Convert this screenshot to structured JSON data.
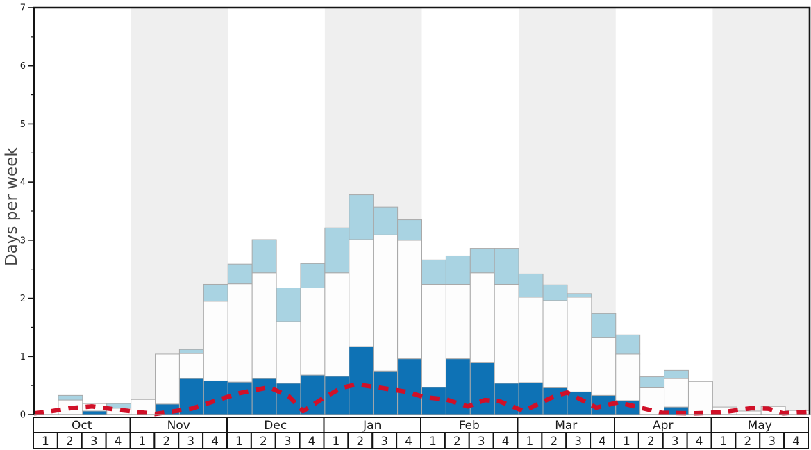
{
  "chart_data": {
    "type": "bar",
    "ylabel": "Days per week",
    "ylim": [
      0,
      7
    ],
    "y_major_ticks": [
      "0",
      "1",
      "2",
      "3",
      "4",
      "5",
      "6",
      "7"
    ],
    "y_minor_step": 0.5,
    "grid": "off",
    "legend": "none",
    "months": [
      "Oct",
      "Nov",
      "Dec",
      "Jan",
      "Feb",
      "Mar",
      "Apr",
      "May"
    ],
    "week_labels": [
      "1",
      "2",
      "3",
      "4"
    ],
    "shaded_month_indices": [
      1,
      3,
      5,
      7
    ],
    "stacking_order": [
      "dark_blue",
      "white",
      "light_blue"
    ],
    "bar_segments_cumulative_tops": {
      "dark_blue": [
        0,
        0,
        0.06,
        0,
        0,
        0.18,
        0.62,
        0.58,
        0.56,
        0.62,
        0.54,
        0.68,
        0.66,
        1.17,
        0.75,
        0.96,
        0.47,
        0.96,
        0.9,
        0.54,
        0.55,
        0.46,
        0.39,
        0.33,
        0.24,
        0,
        0.13,
        0,
        0,
        0,
        0,
        0
      ],
      "white": [
        0,
        0.25,
        0.19,
        0.11,
        0.26,
        1.04,
        1.05,
        1.95,
        2.25,
        2.44,
        1.6,
        2.18,
        2.44,
        3.01,
        3.09,
        3.0,
        2.24,
        2.24,
        2.44,
        2.24,
        2.02,
        1.96,
        2.02,
        1.33,
        1.04,
        0.46,
        0.62,
        0.57,
        0.13,
        0.06,
        0.14,
        0.07
      ],
      "light_blue": [
        0,
        0.33,
        0.19,
        0.19,
        0.26,
        1.04,
        1.12,
        2.24,
        2.59,
        3.01,
        2.18,
        2.6,
        3.21,
        3.78,
        3.57,
        3.35,
        2.66,
        2.73,
        2.86,
        2.86,
        2.42,
        2.23,
        2.08,
        1.74,
        1.37,
        0.65,
        0.76,
        0.57,
        0.13,
        0.06,
        0.14,
        0.07
      ]
    },
    "red_line": {
      "style": "dashed",
      "points_week_value": [
        [
          0.0,
          0.02
        ],
        [
          0.6,
          0.05
        ],
        [
          1.5,
          0.11
        ],
        [
          2.4,
          0.14
        ],
        [
          3.5,
          0.08
        ],
        [
          5.0,
          0.01
        ],
        [
          6.5,
          0.1
        ],
        [
          7.5,
          0.24
        ],
        [
          8.5,
          0.37
        ],
        [
          9.7,
          0.47
        ],
        [
          10.5,
          0.32
        ],
        [
          11.1,
          0.06
        ],
        [
          12.0,
          0.3
        ],
        [
          12.7,
          0.46
        ],
        [
          13.3,
          0.52
        ],
        [
          14.3,
          0.46
        ],
        [
          15.4,
          0.39
        ],
        [
          16.1,
          0.3
        ],
        [
          17.0,
          0.26
        ],
        [
          17.9,
          0.14
        ],
        [
          18.6,
          0.25
        ],
        [
          19.2,
          0.23
        ],
        [
          20.2,
          0.06
        ],
        [
          21.5,
          0.32
        ],
        [
          22.0,
          0.38
        ],
        [
          23.2,
          0.12
        ],
        [
          24.1,
          0.21
        ],
        [
          25.0,
          0.12
        ],
        [
          25.9,
          0.03
        ],
        [
          27.3,
          0.02
        ],
        [
          28.4,
          0.04
        ],
        [
          29.6,
          0.11
        ],
        [
          30.3,
          0.1
        ],
        [
          30.9,
          0.02
        ],
        [
          31.6,
          0.04
        ],
        [
          32.0,
          0.05
        ]
      ]
    },
    "colors": {
      "dark_blue": "#0e72b5",
      "light_blue": "#a9d3e2",
      "bar_white": "#fdfdfd",
      "bar_border": "#a9a9a9",
      "band_gray": "#efefef",
      "red": "#d01028",
      "frame": "#141414",
      "axis_text": "#1a1a1a",
      "ylabel_color": "#444444"
    }
  }
}
